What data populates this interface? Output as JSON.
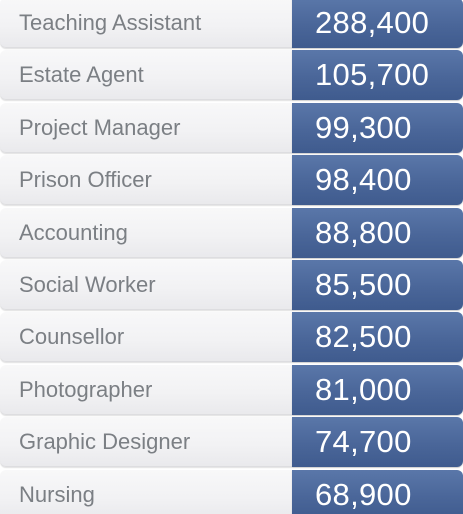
{
  "chart_data": {
    "type": "table",
    "title": "",
    "columns": [
      "",
      ""
    ],
    "rows": [
      {
        "label": "Teaching Assistant",
        "value": 288400,
        "value_text": "288,400"
      },
      {
        "label": "Estate Agent",
        "value": 105700,
        "value_text": "105,700"
      },
      {
        "label": "Project Manager",
        "value": 99300,
        "value_text": "99,300"
      },
      {
        "label": "Prison Officer",
        "value": 98400,
        "value_text": "98,400"
      },
      {
        "label": "Accounting",
        "value": 88800,
        "value_text": "88,800"
      },
      {
        "label": "Social Worker",
        "value": 85500,
        "value_text": "85,500"
      },
      {
        "label": "Counsellor",
        "value": 82500,
        "value_text": "82,500"
      },
      {
        "label": "Photographer",
        "value": 81000,
        "value_text": "81,000"
      },
      {
        "label": "Graphic Designer",
        "value": 74700,
        "value_text": "74,700"
      },
      {
        "label": "Nursing",
        "value": 68900,
        "value_text": "68,900"
      }
    ]
  },
  "colors": {
    "value_cell": "#4a6699",
    "label_cell": "#f2f2f4",
    "label_text": "#7b7f84",
    "value_text": "#ffffff"
  }
}
